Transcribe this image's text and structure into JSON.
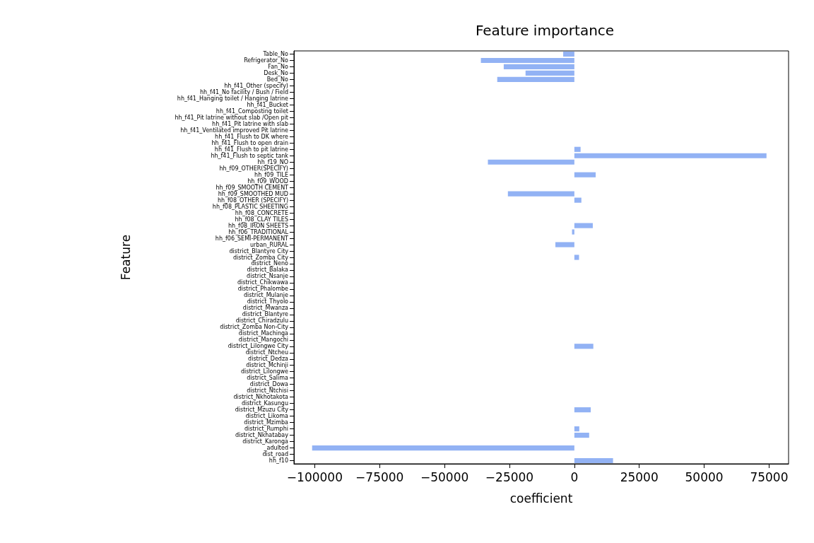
{
  "chart_data": {
    "type": "bar",
    "orientation": "horizontal",
    "title": "Feature importance",
    "xlabel": "coefficient",
    "ylabel": "Feature",
    "categories": [
      "Table_No",
      "Refrigerator_No",
      "Fan_No",
      "Desk_No",
      "Bed_No",
      "hh_f41_Other (specify)",
      "hh_f41_No facility / Bush / Field",
      "hh_f41_Hanging toilet / Hanging latrine",
      "hh_f41_Bucket",
      "hh_f41_Composting toilet",
      "hh_f41_Pit latrine without slab /Open pit",
      "hh_f41_Pit latrine with slab",
      "hh_f41_Ventilated improved Pit latrine",
      "hh_f41_Flush to DK where",
      "hh_f41_Flush to open drain",
      "hh_f41_Flush to pit latrine",
      "hh_f41_Flush to septic tank",
      "hh_f19_NO",
      "hh_f09_OTHER(SPECIFY)",
      "hh_f09_TILE",
      "hh_f09_WOOD",
      "hh_f09_SMOOTH CEMENT",
      "hh_f09_SMOOTHED MUD",
      "hh_f08_OTHER (SPECIFY)",
      "hh_f08_PLASTIC SHEETING",
      "hh_f08_CONCRETE",
      "hh_f08_CLAY TILES",
      "hh_f08_IRON SHEETS",
      "hh_f06_TRADITIONAL",
      "hh_f06_SEMI-PERMANENT",
      "urban_RURAL",
      "district_Blantyre City",
      "district_Zomba City",
      "district_Neno",
      "district_Balaka",
      "district_Nsanje",
      "district_Chikwawa",
      "district_Phalombe",
      "district_Mulanje",
      "district_Thyolo",
      "district_Mwanza",
      "district_Blantyre",
      "district_Chiradzulu",
      "district_Zomba Non-City",
      "district_Machinga",
      "district_Mangochi",
      "district_Lilongwe City",
      "district_Ntcheu",
      "district_Dedza",
      "district_Mchinji",
      "district_Lilongwe",
      "district_Salima",
      "district_Dowa",
      "district_Ntchisi",
      "district_Nkhotakota",
      "district_Kasungu",
      "district_Mzuzu City",
      "district_Likoma",
      "district_Mzimba",
      "district_Rumphi",
      "district_Nkhatabay",
      "district_Karonga",
      "_adulted",
      "dist_road",
      "hh_f10"
    ],
    "values": [
      -4300,
      -36000,
      -27200,
      -18800,
      -29700,
      0,
      0,
      0,
      0,
      0,
      0,
      0,
      0,
      0,
      0,
      2400,
      74000,
      -33300,
      0,
      8200,
      0,
      0,
      -25600,
      2700,
      0,
      0,
      0,
      7100,
      -900,
      0,
      -7300,
      0,
      1800,
      0,
      0,
      0,
      0,
      0,
      0,
      0,
      0,
      0,
      0,
      0,
      0,
      0,
      7300,
      0,
      0,
      0,
      0,
      0,
      0,
      0,
      0,
      0,
      6300,
      0,
      0,
      1900,
      5700,
      0,
      -101000,
      0,
      14900
    ],
    "color": "#92b2f4",
    "xlim": [
      -108000,
      82500
    ],
    "xticks": [
      -100000,
      -75000,
      -50000,
      -25000,
      0,
      25000,
      50000,
      75000
    ],
    "grid": false
  }
}
